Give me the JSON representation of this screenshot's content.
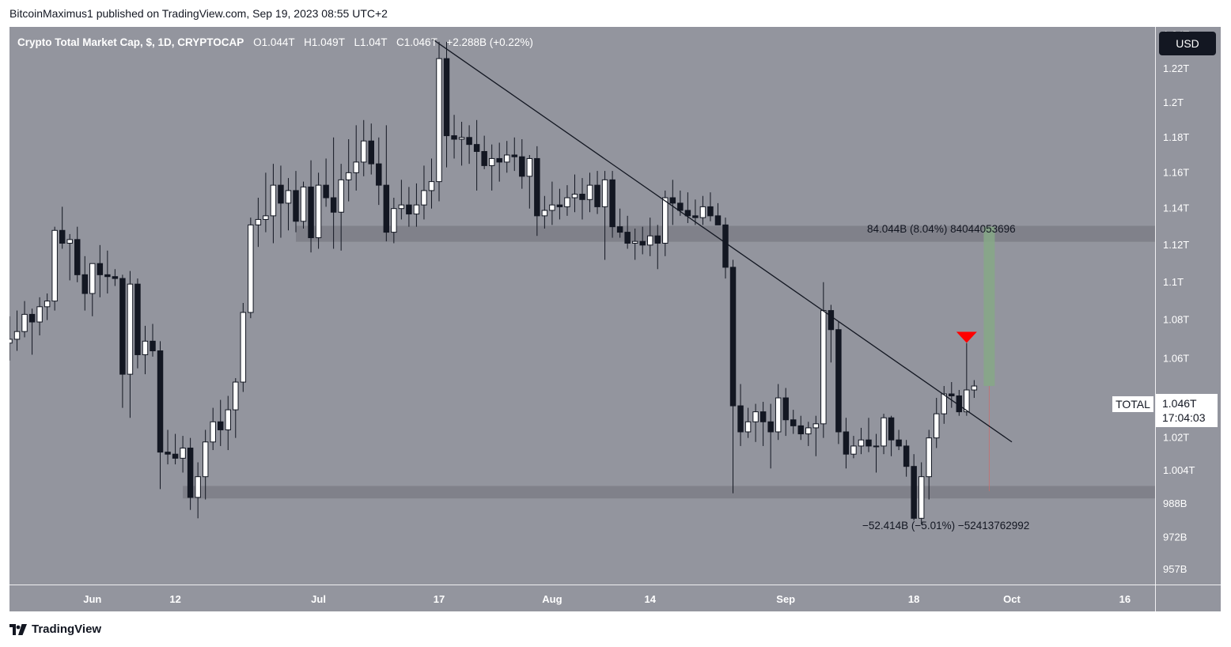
{
  "header": {
    "publisher_line": "BitcoinMaximus1 published on TradingView.com, Sep 19, 2023 08:55 UTC+2"
  },
  "legend": {
    "symbol": "Crypto Total Market Cap, $, 1D, CRYPTOCAP",
    "open_label": "O",
    "open": "1.044T",
    "high_label": "H",
    "high": "1.049T",
    "low_label": "L",
    "low": "1.04T",
    "close_label": "C",
    "close": "1.046T",
    "change": "+2.288B (+0.22%)"
  },
  "currency_button": "USD",
  "price_label": {
    "symbol": "TOTAL",
    "price": "1.046T",
    "countdown": "17:04:03"
  },
  "measure_up_text": "84.044B (8.04%) 84044053696",
  "measure_down_text": "−52.414B (−5.01%) −52413762992",
  "footer": {
    "brand": "TradingView",
    "logo_icon": "tradingview-logo-icon"
  },
  "colors": {
    "background": "#93959e",
    "bull_body": "#ffffff",
    "bear_body": "#131722",
    "wick": "#131722",
    "zone": "#7c7e86",
    "target_zone": "#86a886",
    "arrow": "#ff0000",
    "trendline": "#131722"
  },
  "chart_data": {
    "type": "candlestick",
    "title": "Crypto Total Market Cap, $, 1D, CRYPTOCAP",
    "y_unit": "USD (trillions)",
    "y_scale": "log",
    "ylim": [
      0.95,
      1.245
    ],
    "y_ticks": [
      {
        "v": 1.24,
        "label": "1.24T"
      },
      {
        "v": 1.22,
        "label": "1.22T"
      },
      {
        "v": 1.2,
        "label": "1.2T"
      },
      {
        "v": 1.18,
        "label": "1.18T"
      },
      {
        "v": 1.16,
        "label": "1.16T"
      },
      {
        "v": 1.14,
        "label": "1.14T"
      },
      {
        "v": 1.12,
        "label": "1.12T"
      },
      {
        "v": 1.1,
        "label": "1.1T"
      },
      {
        "v": 1.08,
        "label": "1.08T"
      },
      {
        "v": 1.06,
        "label": "1.06T"
      },
      {
        "v": 1.02,
        "label": "1.02T"
      },
      {
        "v": 1.004,
        "label": "1.004T"
      },
      {
        "v": 0.988,
        "label": "988B"
      },
      {
        "v": 0.972,
        "label": "972B"
      },
      {
        "v": 0.957,
        "label": "957B"
      }
    ],
    "x_ticks": [
      {
        "date": "2023-06-01",
        "label": "Jun"
      },
      {
        "date": "2023-06-12",
        "label": "12"
      },
      {
        "date": "2023-07-01",
        "label": "Jul"
      },
      {
        "date": "2023-07-17",
        "label": "17"
      },
      {
        "date": "2023-08-01",
        "label": "Aug"
      },
      {
        "date": "2023-08-14",
        "label": "14"
      },
      {
        "date": "2023-09-01",
        "label": "Sep"
      },
      {
        "date": "2023-09-18",
        "label": "18"
      },
      {
        "date": "2023-10-01",
        "label": "Oct"
      },
      {
        "date": "2023-10-16",
        "label": "16"
      }
    ],
    "candles": [
      {
        "d": "2023-05-21",
        "o": 1.068,
        "h": 1.082,
        "l": 1.059,
        "c": 1.07
      },
      {
        "d": "2023-05-22",
        "o": 1.07,
        "h": 1.085,
        "l": 1.064,
        "c": 1.074
      },
      {
        "d": "2023-05-23",
        "o": 1.074,
        "h": 1.09,
        "l": 1.071,
        "c": 1.083
      },
      {
        "d": "2023-05-24",
        "o": 1.083,
        "h": 1.086,
        "l": 1.062,
        "c": 1.079
      },
      {
        "d": "2023-05-25",
        "o": 1.079,
        "h": 1.092,
        "l": 1.072,
        "c": 1.087
      },
      {
        "d": "2023-05-26",
        "o": 1.087,
        "h": 1.094,
        "l": 1.08,
        "c": 1.09
      },
      {
        "d": "2023-05-27",
        "o": 1.09,
        "h": 1.13,
        "l": 1.085,
        "c": 1.128
      },
      {
        "d": "2023-05-28",
        "o": 1.128,
        "h": 1.141,
        "l": 1.118,
        "c": 1.121
      },
      {
        "d": "2023-05-29",
        "o": 1.121,
        "h": 1.126,
        "l": 1.101,
        "c": 1.123
      },
      {
        "d": "2023-05-30",
        "o": 1.123,
        "h": 1.13,
        "l": 1.1,
        "c": 1.104
      },
      {
        "d": "2023-05-31",
        "o": 1.104,
        "h": 1.114,
        "l": 1.085,
        "c": 1.094
      },
      {
        "d": "2023-06-01",
        "o": 1.094,
        "h": 1.108,
        "l": 1.082,
        "c": 1.11
      },
      {
        "d": "2023-06-02",
        "o": 1.11,
        "h": 1.12,
        "l": 1.092,
        "c": 1.104
      },
      {
        "d": "2023-06-03",
        "o": 1.104,
        "h": 1.117,
        "l": 1.094,
        "c": 1.103
      },
      {
        "d": "2023-06-04",
        "o": 1.103,
        "h": 1.107,
        "l": 1.098,
        "c": 1.102
      },
      {
        "d": "2023-06-05",
        "o": 1.102,
        "h": 1.104,
        "l": 1.035,
        "c": 1.052
      },
      {
        "d": "2023-06-06",
        "o": 1.052,
        "h": 1.106,
        "l": 1.03,
        "c": 1.099
      },
      {
        "d": "2023-06-07",
        "o": 1.099,
        "h": 1.102,
        "l": 1.055,
        "c": 1.062
      },
      {
        "d": "2023-06-08",
        "o": 1.062,
        "h": 1.077,
        "l": 1.052,
        "c": 1.069
      },
      {
        "d": "2023-06-09",
        "o": 1.069,
        "h": 1.078,
        "l": 1.061,
        "c": 1.064
      },
      {
        "d": "2023-06-10",
        "o": 1.064,
        "h": 1.069,
        "l": 0.995,
        "c": 1.013
      },
      {
        "d": "2023-06-11",
        "o": 1.013,
        "h": 1.024,
        "l": 1.007,
        "c": 1.012
      },
      {
        "d": "2023-06-12",
        "o": 1.012,
        "h": 1.022,
        "l": 1.007,
        "c": 1.01
      },
      {
        "d": "2023-06-13",
        "o": 1.01,
        "h": 1.021,
        "l": 1.003,
        "c": 1.015
      },
      {
        "d": "2023-06-14",
        "o": 1.015,
        "h": 1.02,
        "l": 0.985,
        "c": 0.991
      },
      {
        "d": "2023-06-15",
        "o": 0.991,
        "h": 1.008,
        "l": 0.981,
        "c": 1.001
      },
      {
        "d": "2023-06-16",
        "o": 1.001,
        "h": 1.024,
        "l": 0.99,
        "c": 1.018
      },
      {
        "d": "2023-06-17",
        "o": 1.018,
        "h": 1.035,
        "l": 1.014,
        "c": 1.028
      },
      {
        "d": "2023-06-18",
        "o": 1.028,
        "h": 1.039,
        "l": 1.016,
        "c": 1.024
      },
      {
        "d": "2023-06-19",
        "o": 1.024,
        "h": 1.041,
        "l": 1.014,
        "c": 1.034
      },
      {
        "d": "2023-06-20",
        "o": 1.034,
        "h": 1.05,
        "l": 1.02,
        "c": 1.048
      },
      {
        "d": "2023-06-21",
        "o": 1.048,
        "h": 1.089,
        "l": 1.043,
        "c": 1.084
      },
      {
        "d": "2023-06-22",
        "o": 1.084,
        "h": 1.135,
        "l": 1.081,
        "c": 1.131
      },
      {
        "d": "2023-06-23",
        "o": 1.131,
        "h": 1.146,
        "l": 1.119,
        "c": 1.134
      },
      {
        "d": "2023-06-24",
        "o": 1.134,
        "h": 1.16,
        "l": 1.127,
        "c": 1.136
      },
      {
        "d": "2023-06-25",
        "o": 1.136,
        "h": 1.165,
        "l": 1.121,
        "c": 1.153
      },
      {
        "d": "2023-06-26",
        "o": 1.153,
        "h": 1.164,
        "l": 1.124,
        "c": 1.143
      },
      {
        "d": "2023-06-27",
        "o": 1.143,
        "h": 1.157,
        "l": 1.128,
        "c": 1.15
      },
      {
        "d": "2023-06-28",
        "o": 1.15,
        "h": 1.161,
        "l": 1.127,
        "c": 1.133
      },
      {
        "d": "2023-06-29",
        "o": 1.133,
        "h": 1.155,
        "l": 1.129,
        "c": 1.152
      },
      {
        "d": "2023-06-30",
        "o": 1.152,
        "h": 1.167,
        "l": 1.116,
        "c": 1.124
      },
      {
        "d": "2023-07-01",
        "o": 1.124,
        "h": 1.16,
        "l": 1.118,
        "c": 1.153
      },
      {
        "d": "2023-07-02",
        "o": 1.153,
        "h": 1.168,
        "l": 1.141,
        "c": 1.146
      },
      {
        "d": "2023-07-03",
        "o": 1.146,
        "h": 1.18,
        "l": 1.118,
        "c": 1.138
      },
      {
        "d": "2023-07-04",
        "o": 1.138,
        "h": 1.165,
        "l": 1.117,
        "c": 1.156
      },
      {
        "d": "2023-07-05",
        "o": 1.156,
        "h": 1.179,
        "l": 1.144,
        "c": 1.16
      },
      {
        "d": "2023-07-06",
        "o": 1.16,
        "h": 1.187,
        "l": 1.15,
        "c": 1.166
      },
      {
        "d": "2023-07-07",
        "o": 1.166,
        "h": 1.19,
        "l": 1.158,
        "c": 1.178
      },
      {
        "d": "2023-07-08",
        "o": 1.178,
        "h": 1.188,
        "l": 1.159,
        "c": 1.165
      },
      {
        "d": "2023-07-09",
        "o": 1.165,
        "h": 1.18,
        "l": 1.142,
        "c": 1.153
      },
      {
        "d": "2023-07-10",
        "o": 1.153,
        "h": 1.187,
        "l": 1.122,
        "c": 1.127
      },
      {
        "d": "2023-07-11",
        "o": 1.127,
        "h": 1.146,
        "l": 1.121,
        "c": 1.14
      },
      {
        "d": "2023-07-12",
        "o": 1.14,
        "h": 1.156,
        "l": 1.134,
        "c": 1.142
      },
      {
        "d": "2023-07-13",
        "o": 1.142,
        "h": 1.152,
        "l": 1.13,
        "c": 1.137
      },
      {
        "d": "2023-07-14",
        "o": 1.137,
        "h": 1.154,
        "l": 1.13,
        "c": 1.142
      },
      {
        "d": "2023-07-15",
        "o": 1.142,
        "h": 1.164,
        "l": 1.134,
        "c": 1.15
      },
      {
        "d": "2023-07-16",
        "o": 1.15,
        "h": 1.168,
        "l": 1.14,
        "c": 1.155
      },
      {
        "d": "2023-07-17",
        "o": 1.155,
        "h": 1.236,
        "l": 1.144,
        "c": 1.226
      },
      {
        "d": "2023-07-18",
        "o": 1.226,
        "h": 1.236,
        "l": 1.163,
        "c": 1.181
      },
      {
        "d": "2023-07-19",
        "o": 1.181,
        "h": 1.193,
        "l": 1.168,
        "c": 1.179
      },
      {
        "d": "2023-07-20",
        "o": 1.179,
        "h": 1.189,
        "l": 1.164,
        "c": 1.18
      },
      {
        "d": "2023-07-21",
        "o": 1.18,
        "h": 1.187,
        "l": 1.165,
        "c": 1.176
      },
      {
        "d": "2023-07-22",
        "o": 1.176,
        "h": 1.19,
        "l": 1.15,
        "c": 1.172
      },
      {
        "d": "2023-07-23",
        "o": 1.172,
        "h": 1.181,
        "l": 1.162,
        "c": 1.164
      },
      {
        "d": "2023-07-24",
        "o": 1.164,
        "h": 1.176,
        "l": 1.15,
        "c": 1.168
      },
      {
        "d": "2023-07-25",
        "o": 1.168,
        "h": 1.177,
        "l": 1.155,
        "c": 1.166
      },
      {
        "d": "2023-07-26",
        "o": 1.166,
        "h": 1.178,
        "l": 1.16,
        "c": 1.17
      },
      {
        "d": "2023-07-27",
        "o": 1.17,
        "h": 1.18,
        "l": 1.161,
        "c": 1.169
      },
      {
        "d": "2023-07-28",
        "o": 1.169,
        "h": 1.179,
        "l": 1.151,
        "c": 1.158
      },
      {
        "d": "2023-07-29",
        "o": 1.158,
        "h": 1.17,
        "l": 1.14,
        "c": 1.168
      },
      {
        "d": "2023-07-30",
        "o": 1.168,
        "h": 1.175,
        "l": 1.125,
        "c": 1.136
      },
      {
        "d": "2023-07-31",
        "o": 1.136,
        "h": 1.147,
        "l": 1.129,
        "c": 1.139
      },
      {
        "d": "2023-08-01",
        "o": 1.139,
        "h": 1.155,
        "l": 1.131,
        "c": 1.142
      },
      {
        "d": "2023-08-02",
        "o": 1.142,
        "h": 1.151,
        "l": 1.134,
        "c": 1.141
      },
      {
        "d": "2023-08-03",
        "o": 1.141,
        "h": 1.153,
        "l": 1.136,
        "c": 1.146
      },
      {
        "d": "2023-08-04",
        "o": 1.146,
        "h": 1.159,
        "l": 1.138,
        "c": 1.148
      },
      {
        "d": "2023-08-05",
        "o": 1.148,
        "h": 1.157,
        "l": 1.134,
        "c": 1.145
      },
      {
        "d": "2023-08-06",
        "o": 1.145,
        "h": 1.16,
        "l": 1.138,
        "c": 1.153
      },
      {
        "d": "2023-08-07",
        "o": 1.153,
        "h": 1.161,
        "l": 1.137,
        "c": 1.141
      },
      {
        "d": "2023-08-08",
        "o": 1.141,
        "h": 1.161,
        "l": 1.112,
        "c": 1.156
      },
      {
        "d": "2023-08-09",
        "o": 1.156,
        "h": 1.161,
        "l": 1.124,
        "c": 1.13
      },
      {
        "d": "2023-08-10",
        "o": 1.13,
        "h": 1.14,
        "l": 1.124,
        "c": 1.127
      },
      {
        "d": "2023-08-11",
        "o": 1.127,
        "h": 1.136,
        "l": 1.118,
        "c": 1.121
      },
      {
        "d": "2023-08-12",
        "o": 1.121,
        "h": 1.129,
        "l": 1.112,
        "c": 1.122
      },
      {
        "d": "2023-08-13",
        "o": 1.122,
        "h": 1.13,
        "l": 1.115,
        "c": 1.12
      },
      {
        "d": "2023-08-14",
        "o": 1.12,
        "h": 1.135,
        "l": 1.114,
        "c": 1.125
      },
      {
        "d": "2023-08-15",
        "o": 1.125,
        "h": 1.131,
        "l": 1.107,
        "c": 1.121
      },
      {
        "d": "2023-08-16",
        "o": 1.121,
        "h": 1.15,
        "l": 1.114,
        "c": 1.146
      },
      {
        "d": "2023-08-17",
        "o": 1.146,
        "h": 1.156,
        "l": 1.131,
        "c": 1.143
      },
      {
        "d": "2023-08-18",
        "o": 1.143,
        "h": 1.15,
        "l": 1.136,
        "c": 1.139
      },
      {
        "d": "2023-08-19",
        "o": 1.139,
        "h": 1.149,
        "l": 1.132,
        "c": 1.136
      },
      {
        "d": "2023-08-20",
        "o": 1.136,
        "h": 1.145,
        "l": 1.131,
        "c": 1.135
      },
      {
        "d": "2023-08-21",
        "o": 1.135,
        "h": 1.147,
        "l": 1.131,
        "c": 1.141
      },
      {
        "d": "2023-08-22",
        "o": 1.141,
        "h": 1.149,
        "l": 1.133,
        "c": 1.136
      },
      {
        "d": "2023-08-23",
        "o": 1.136,
        "h": 1.143,
        "l": 1.131,
        "c": 1.131
      },
      {
        "d": "2023-08-24",
        "o": 1.131,
        "h": 1.135,
        "l": 1.102,
        "c": 1.108
      },
      {
        "d": "2023-08-25",
        "o": 1.108,
        "h": 1.112,
        "l": 0.993,
        "c": 1.036
      },
      {
        "d": "2023-08-26",
        "o": 1.036,
        "h": 1.047,
        "l": 1.016,
        "c": 1.023
      },
      {
        "d": "2023-08-27",
        "o": 1.023,
        "h": 1.035,
        "l": 1.02,
        "c": 1.028
      },
      {
        "d": "2023-08-28",
        "o": 1.028,
        "h": 1.037,
        "l": 1.018,
        "c": 1.033
      },
      {
        "d": "2023-08-29",
        "o": 1.033,
        "h": 1.038,
        "l": 1.016,
        "c": 1.028
      },
      {
        "d": "2023-08-30",
        "o": 1.028,
        "h": 1.037,
        "l": 1.005,
        "c": 1.023
      },
      {
        "d": "2023-08-31",
        "o": 1.023,
        "h": 1.047,
        "l": 1.019,
        "c": 1.04
      },
      {
        "d": "2023-09-01",
        "o": 1.04,
        "h": 1.045,
        "l": 1.021,
        "c": 1.029
      },
      {
        "d": "2023-09-02",
        "o": 1.029,
        "h": 1.034,
        "l": 1.022,
        "c": 1.026
      },
      {
        "d": "2023-09-03",
        "o": 1.026,
        "h": 1.031,
        "l": 1.019,
        "c": 1.022
      },
      {
        "d": "2023-09-04",
        "o": 1.022,
        "h": 1.028,
        "l": 1.016,
        "c": 1.025
      },
      {
        "d": "2023-09-05",
        "o": 1.025,
        "h": 1.031,
        "l": 1.011,
        "c": 1.027
      },
      {
        "d": "2023-09-06",
        "o": 1.027,
        "h": 1.1,
        "l": 1.02,
        "c": 1.085
      },
      {
        "d": "2023-09-07",
        "o": 1.085,
        "h": 1.088,
        "l": 1.058,
        "c": 1.075
      },
      {
        "d": "2023-09-08",
        "o": 1.075,
        "h": 1.079,
        "l": 1.017,
        "c": 1.023
      },
      {
        "d": "2023-09-09",
        "o": 1.023,
        "h": 1.03,
        "l": 1.005,
        "c": 1.012
      },
      {
        "d": "2023-09-10",
        "o": 1.012,
        "h": 1.021,
        "l": 1.01,
        "c": 1.016
      },
      {
        "d": "2023-09-11",
        "o": 1.016,
        "h": 1.025,
        "l": 1.012,
        "c": 1.019
      },
      {
        "d": "2023-09-12",
        "o": 1.019,
        "h": 1.03,
        "l": 1.013,
        "c": 1.016
      },
      {
        "d": "2023-09-13",
        "o": 1.016,
        "h": 1.022,
        "l": 1.003,
        "c": 1.016
      },
      {
        "d": "2023-09-14",
        "o": 1.016,
        "h": 1.032,
        "l": 1.012,
        "c": 1.03
      },
      {
        "d": "2023-09-15",
        "o": 1.03,
        "h": 1.031,
        "l": 1.011,
        "c": 1.019
      },
      {
        "d": "2023-09-16",
        "o": 1.019,
        "h": 1.024,
        "l": 1.014,
        "c": 1.016
      },
      {
        "d": "2023-09-17",
        "o": 1.016,
        "h": 1.019,
        "l": 1.001,
        "c": 1.006
      },
      {
        "d": "2023-09-18",
        "o": 1.006,
        "h": 1.012,
        "l": 0.98,
        "c": 0.981
      },
      {
        "d": "2023-09-19",
        "o": 0.981,
        "h": 1.008,
        "l": 0.978,
        "c": 1.001
      },
      {
        "d": "2023-09-20",
        "o": 1.001,
        "h": 1.024,
        "l": 0.99,
        "c": 1.02
      },
      {
        "d": "2023-09-21",
        "o": 1.02,
        "h": 1.04,
        "l": 1.015,
        "c": 1.032
      },
      {
        "d": "2023-09-22",
        "o": 1.032,
        "h": 1.046,
        "l": 1.027,
        "c": 1.042
      },
      {
        "d": "2023-09-23",
        "o": 1.042,
        "h": 1.048,
        "l": 1.035,
        "c": 1.041
      },
      {
        "d": "2023-09-24",
        "o": 1.041,
        "h": 1.044,
        "l": 1.031,
        "c": 1.033
      },
      {
        "d": "2023-09-25",
        "o": 1.033,
        "h": 1.068,
        "l": 1.031,
        "c": 1.044
      },
      {
        "d": "2023-09-26",
        "o": 1.044,
        "h": 1.049,
        "l": 1.04,
        "c": 1.046
      }
    ],
    "support_zone": [
      0.9905,
      0.9965
    ],
    "resistance_zone": [
      1.1218,
      1.1305
    ],
    "descending_trendline": {
      "start": {
        "d": "2023-07-16",
        "v": 1.238
      },
      "end": {
        "d": "2023-10-01",
        "v": 1.018
      }
    },
    "bearish_arrow": {
      "d": "2023-09-25",
      "v": 1.071
    },
    "measure_up": {
      "d": "2023-09-28",
      "from": 1.046,
      "to": 1.13
    },
    "measure_down": {
      "d": "2023-09-28",
      "from": 1.046,
      "to": 0.994
    },
    "x_start": "2023-05-21",
    "x_end": "2023-10-20"
  }
}
